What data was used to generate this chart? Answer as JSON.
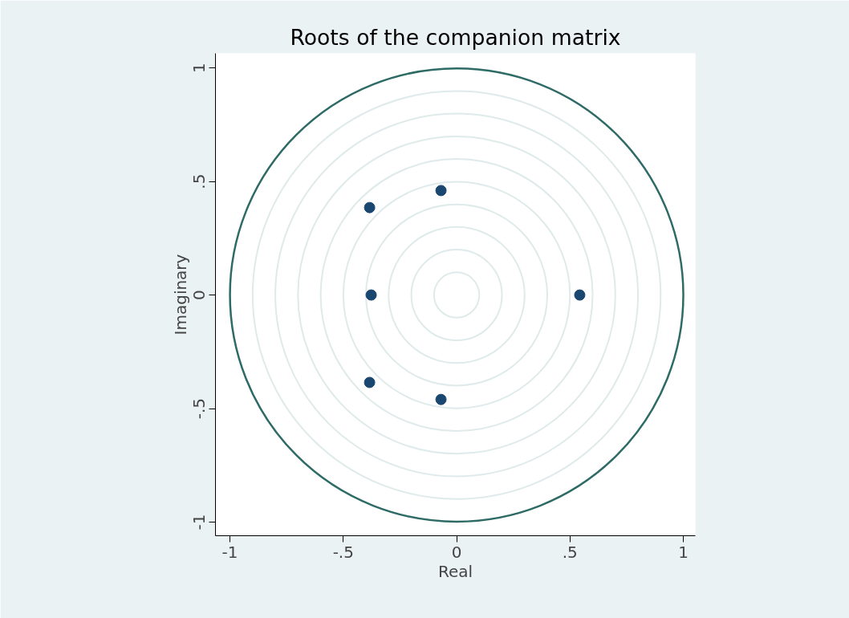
{
  "chart_data": {
    "type": "scatter",
    "title": "Roots of the companion matrix",
    "xlabel": "Real",
    "ylabel": "Imaginary",
    "xlim": [
      -1.064,
      1.053
    ],
    "ylim": [
      -1.06,
      1.064
    ],
    "xticks": [
      {
        "value": -1,
        "label": "-1"
      },
      {
        "value": -0.5,
        "label": "-.5"
      },
      {
        "value": 0,
        "label": "0"
      },
      {
        "value": 0.5,
        "label": ".5"
      },
      {
        "value": 1,
        "label": "1"
      }
    ],
    "yticks": [
      {
        "value": -1,
        "label": "-1"
      },
      {
        "value": -0.5,
        "label": "-.5"
      },
      {
        "value": 0,
        "label": "0"
      },
      {
        "value": 0.5,
        "label": ".5"
      },
      {
        "value": 1,
        "label": "1"
      }
    ],
    "series": [
      {
        "color": "#1a476f",
        "marker": "circle",
        "x": [
          -0.069,
          -0.384,
          -0.377,
          0.543,
          -0.384,
          -0.069
        ],
        "values": [
          0.46,
          0.385,
          0,
          0,
          -0.385,
          -0.46
        ]
      }
    ]
  }
}
